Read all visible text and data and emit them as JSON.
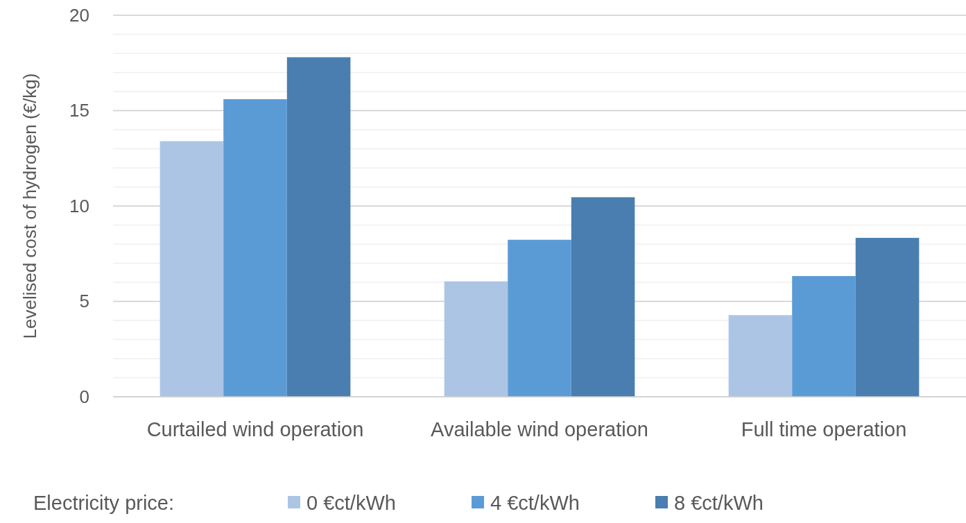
{
  "chart_data": {
    "type": "bar",
    "ylabel": "Levelised cost of hydrogen (€/kg)",
    "legend_title": "Electricity price:",
    "categories": [
      "Curtailed wind operation",
      "Available wind operation",
      "Full time operation"
    ],
    "series": [
      {
        "name": "0 €ct/kWh",
        "color": "#adc5e5",
        "values": [
          13.4,
          6.05,
          4.28
        ]
      },
      {
        "name": "4 €ct/kWh",
        "color": "#5b9bd5",
        "values": [
          15.6,
          8.23,
          6.33
        ]
      },
      {
        "name": "8 €ct/kWh",
        "color": "#4a7eb0",
        "values": [
          17.8,
          10.46,
          8.33
        ]
      }
    ],
    "ylim": [
      0,
      20
    ],
    "yticks": [
      0,
      5,
      10,
      15,
      20
    ],
    "grid": true,
    "legend": "bottom"
  }
}
